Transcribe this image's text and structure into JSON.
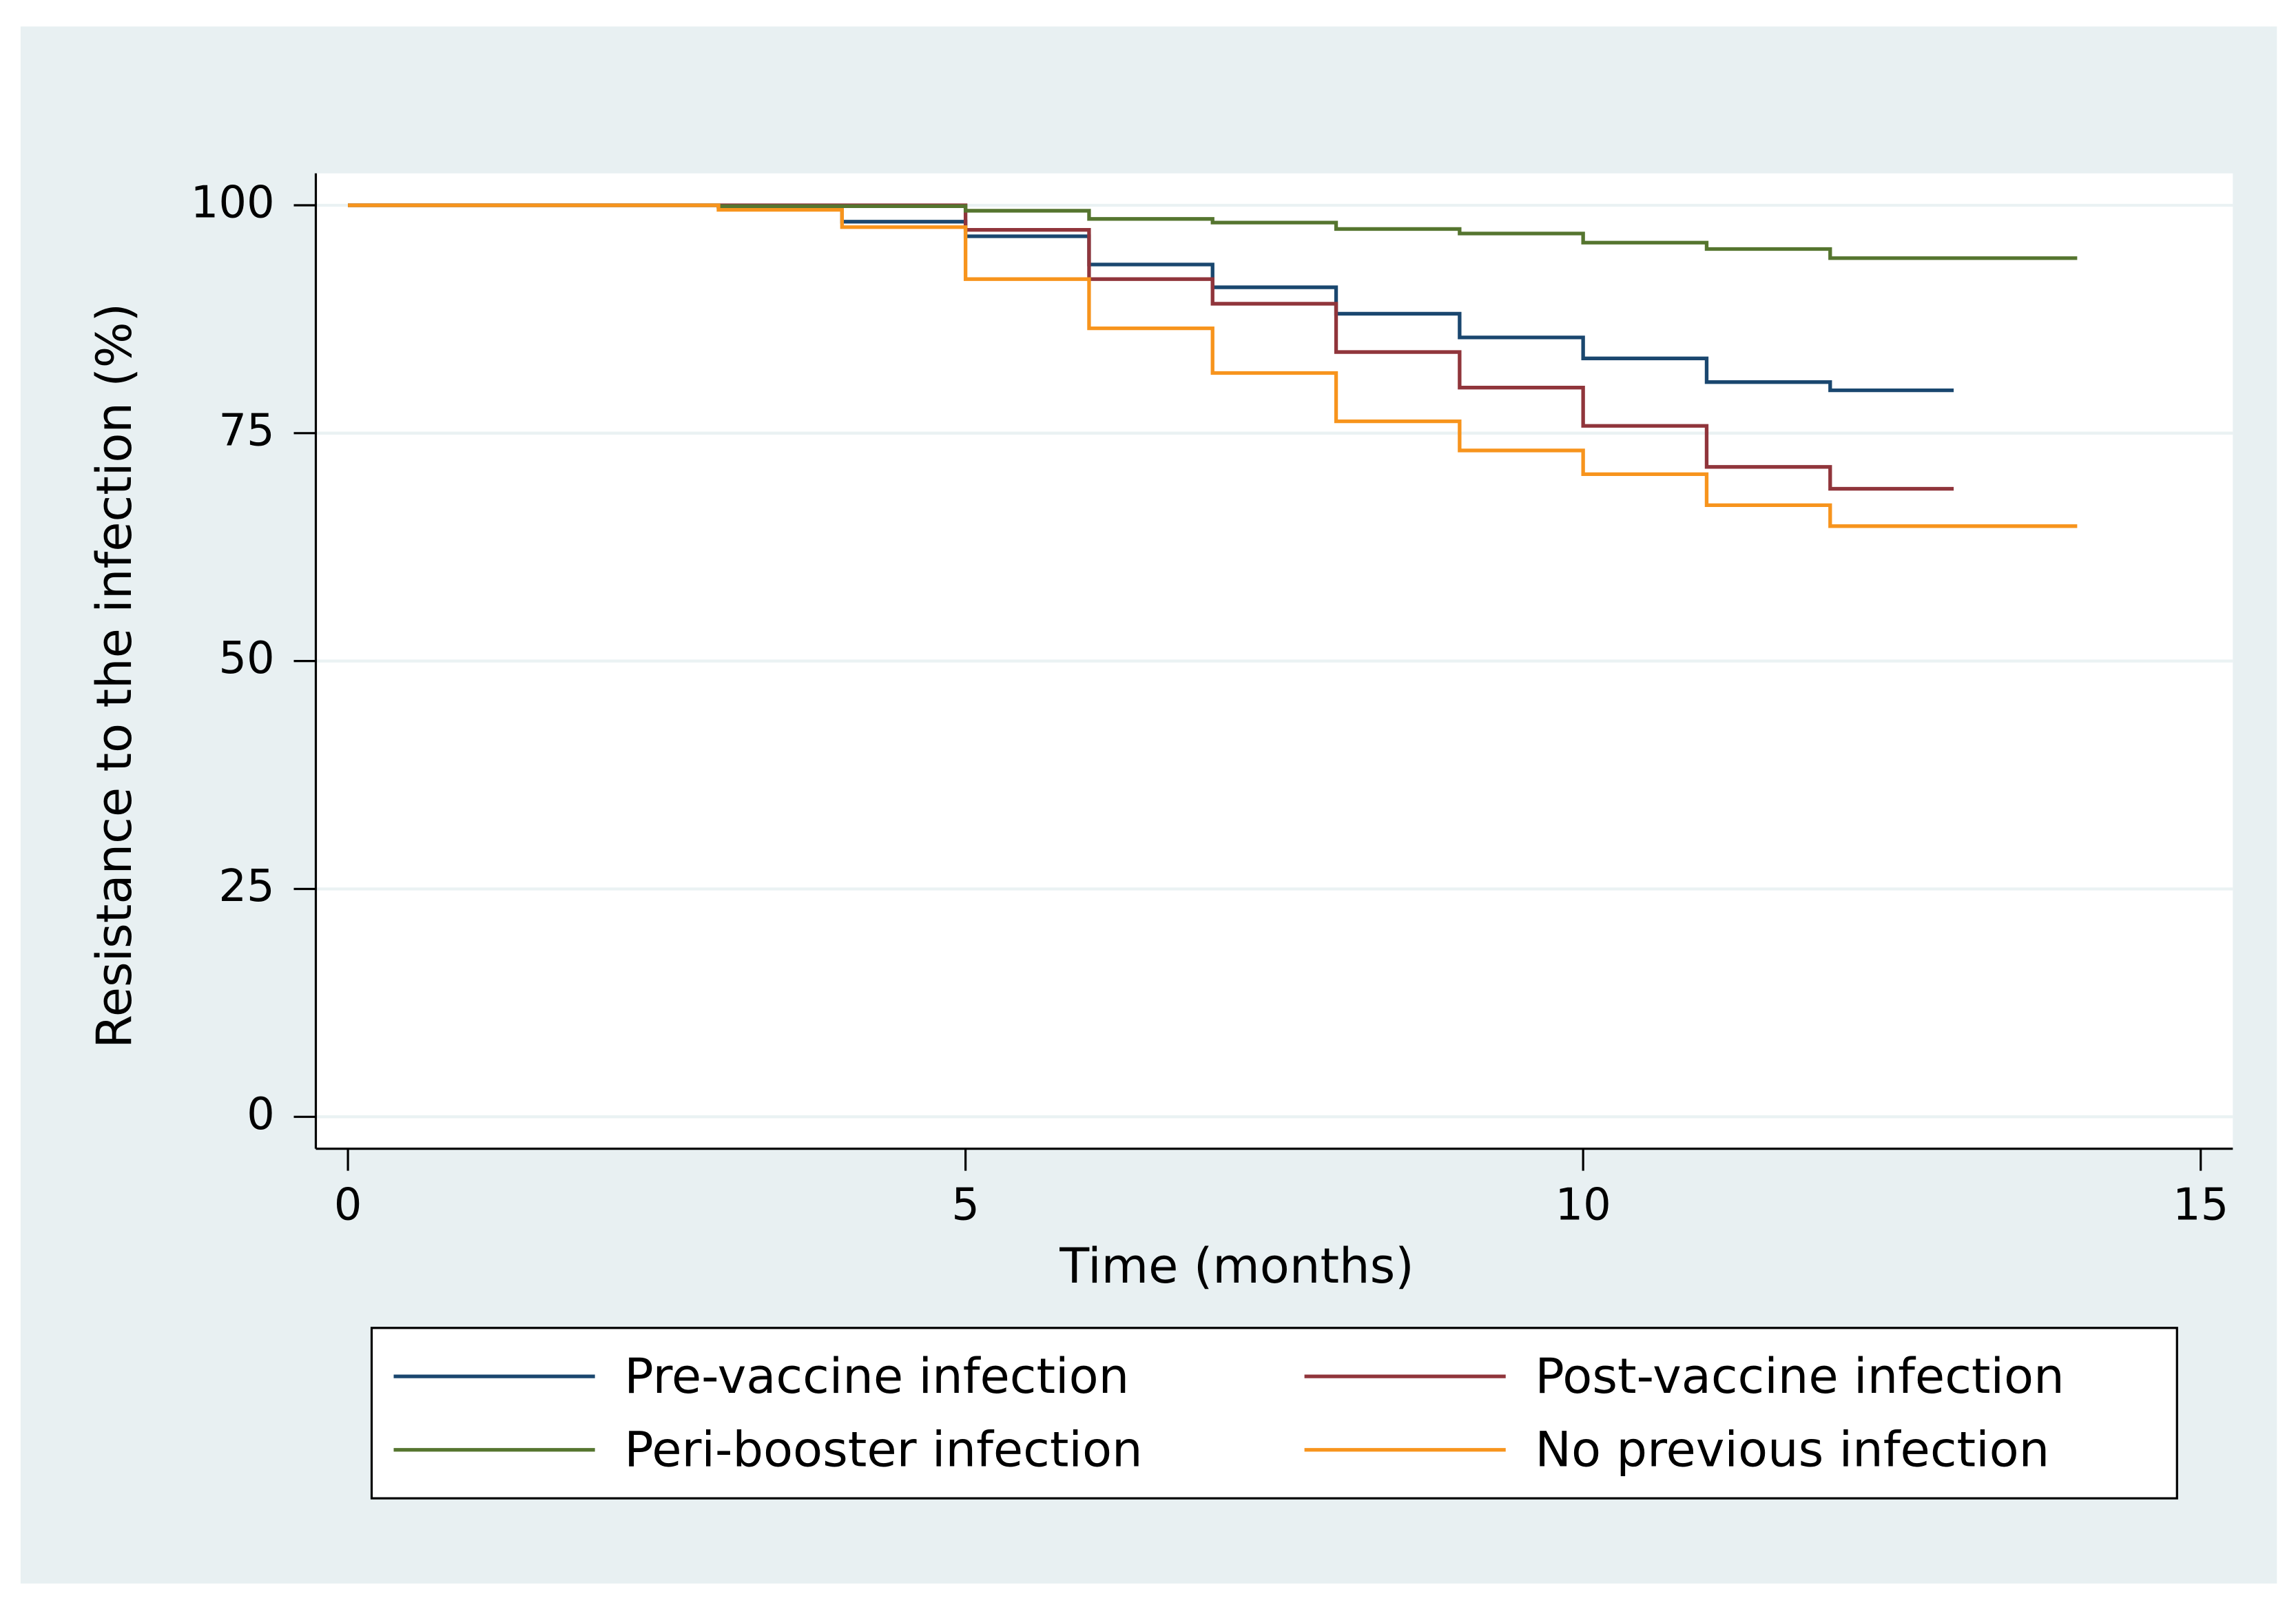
{
  "chart_data": {
    "type": "line",
    "step": "post",
    "x_label": "Time (months)",
    "y_label": "Resistance to the infection (%)",
    "x": [
      0,
      1,
      2,
      3,
      4,
      5,
      6,
      7,
      8,
      9,
      10,
      11,
      12,
      13,
      14
    ],
    "series": [
      {
        "name": "Pre-vaccine infection",
        "color": "#1a476f",
        "values": [
          100,
          100,
          100,
          99.8,
          98.2,
          96.6,
          93.5,
          91,
          88.1,
          85.5,
          83.2,
          80.6,
          79.7,
          79.7,
          null
        ]
      },
      {
        "name": "Post-vaccine infection",
        "color": "#90353b",
        "values": [
          100,
          100,
          100,
          100,
          100,
          97.3,
          91.9,
          89.2,
          83.9,
          80,
          75.8,
          71.3,
          68.9,
          68.9,
          null
        ]
      },
      {
        "name": "Peri-booster infection",
        "color": "#55752f",
        "values": [
          100,
          100,
          100,
          99.9,
          99.9,
          99.4,
          98.5,
          98.1,
          97.4,
          96.9,
          95.9,
          95.2,
          94.2,
          94.2,
          94.2
        ]
      },
      {
        "name": "No previous infection",
        "color": "#f7941d",
        "values": [
          100,
          100,
          100,
          99.5,
          97.6,
          91.9,
          86.5,
          81.6,
          76.3,
          73.1,
          70.5,
          67.1,
          64.8,
          64.8,
          64.8
        ]
      }
    ],
    "xlim": [
      -0.26,
      15.26
    ],
    "ylim": [
      -3.5,
      103.5
    ],
    "xticks": [
      0,
      5,
      10,
      15
    ],
    "yticks": [
      0,
      25,
      50,
      75,
      100
    ],
    "grid": true,
    "legend": "bottom"
  }
}
